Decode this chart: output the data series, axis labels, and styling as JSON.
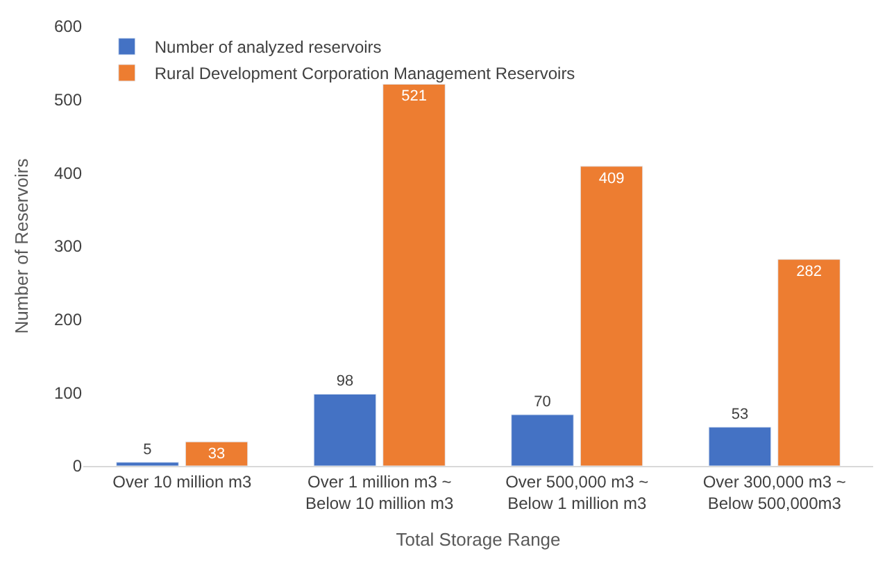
{
  "chart_data": {
    "type": "bar",
    "xlabel": "Total Storage Range",
    "ylabel": "Number of Reservoirs",
    "categories": [
      "Over 10 million m3",
      "Over 1 million m3 ~\nBelow 10 million m3",
      "Over 500,000 m3 ~\nBelow 1 million m3",
      "Over 300,000 m3 ~\nBelow 500,000m3"
    ],
    "series": [
      {
        "name": "Number of analyzed reservoirs",
        "color": "#4472c4",
        "values": [
          5,
          98,
          70,
          53
        ]
      },
      {
        "name": "Rural Development Corporation Management Reservoirs",
        "color": "#ed7d31",
        "values": [
          33,
          521,
          409,
          282
        ]
      }
    ],
    "ylim": [
      0,
      600
    ],
    "yticks": [
      0,
      100,
      200,
      300,
      400,
      500,
      600
    ],
    "data_labels": true,
    "legend": "top left",
    "grid": false
  }
}
